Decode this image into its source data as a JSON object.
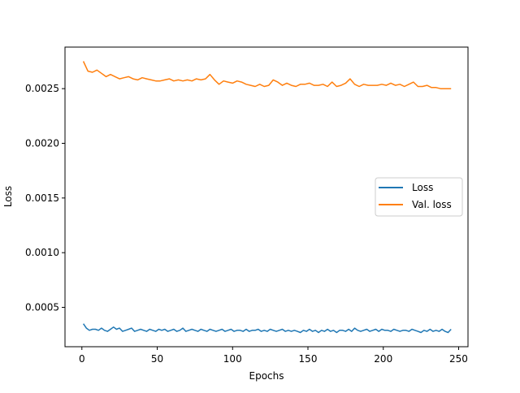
{
  "chart_data": {
    "type": "line",
    "title": "",
    "xlabel": "Epochs",
    "ylabel": "Loss",
    "xlim": [
      -11.2,
      256.2
    ],
    "ylim": [
      0.00014,
      0.00288
    ],
    "xticks": [
      0,
      50,
      100,
      150,
      200,
      250
    ],
    "xtick_labels": [
      "0",
      "50",
      "100",
      "150",
      "200",
      "250"
    ],
    "yticks": [
      0.0005,
      0.001,
      0.0015,
      0.002,
      0.0025
    ],
    "ytick_labels": [
      "0.0005",
      "0.0010",
      "0.0015",
      "0.0020",
      "0.0025"
    ],
    "grid": false,
    "legend_position": "center-right",
    "series": [
      {
        "name": "Loss",
        "color": "#1f77b4",
        "x": [
          1,
          3,
          5,
          7,
          9,
          11,
          13,
          15,
          17,
          19,
          21,
          23,
          25,
          27,
          29,
          31,
          33,
          35,
          37,
          39,
          41,
          43,
          45,
          47,
          49,
          51,
          53,
          55,
          57,
          59,
          61,
          63,
          65,
          67,
          69,
          71,
          73,
          75,
          77,
          79,
          81,
          83,
          85,
          87,
          89,
          91,
          93,
          95,
          97,
          99,
          101,
          103,
          105,
          107,
          109,
          111,
          113,
          115,
          117,
          119,
          121,
          123,
          125,
          127,
          129,
          131,
          133,
          135,
          137,
          139,
          141,
          143,
          145,
          147,
          149,
          151,
          153,
          155,
          157,
          159,
          161,
          163,
          165,
          167,
          169,
          171,
          173,
          175,
          177,
          179,
          181,
          183,
          185,
          187,
          189,
          191,
          193,
          195,
          197,
          199,
          201,
          203,
          205,
          207,
          209,
          211,
          213,
          215,
          217,
          219,
          221,
          223,
          225,
          227,
          229,
          231,
          233,
          235,
          237,
          239,
          241,
          243,
          245
        ],
        "y": [
          0.00035,
          0.00031,
          0.00029,
          0.0003,
          0.0003,
          0.00029,
          0.00031,
          0.00029,
          0.00028,
          0.0003,
          0.00032,
          0.0003,
          0.00031,
          0.00028,
          0.00029,
          0.0003,
          0.00031,
          0.00028,
          0.00029,
          0.0003,
          0.00029,
          0.00028,
          0.0003,
          0.00029,
          0.00028,
          0.0003,
          0.00029,
          0.0003,
          0.00028,
          0.00029,
          0.0003,
          0.00028,
          0.00029,
          0.00031,
          0.00028,
          0.00029,
          0.0003,
          0.00029,
          0.00028,
          0.0003,
          0.00029,
          0.00028,
          0.0003,
          0.00029,
          0.00028,
          0.00029,
          0.0003,
          0.00028,
          0.00029,
          0.0003,
          0.00028,
          0.00029,
          0.00029,
          0.00028,
          0.0003,
          0.00028,
          0.00029,
          0.00029,
          0.0003,
          0.00028,
          0.00029,
          0.00028,
          0.0003,
          0.00029,
          0.00028,
          0.00029,
          0.0003,
          0.00028,
          0.00029,
          0.00028,
          0.00029,
          0.00028,
          0.00027,
          0.00029,
          0.00028,
          0.0003,
          0.00028,
          0.00029,
          0.00027,
          0.00029,
          0.00028,
          0.0003,
          0.00028,
          0.00029,
          0.00027,
          0.00029,
          0.00029,
          0.00028,
          0.0003,
          0.00028,
          0.00031,
          0.00029,
          0.00028,
          0.00029,
          0.0003,
          0.00028,
          0.00029,
          0.0003,
          0.00028,
          0.0003,
          0.00029,
          0.00029,
          0.00028,
          0.0003,
          0.00029,
          0.00028,
          0.00029,
          0.00029,
          0.00028,
          0.0003,
          0.00029,
          0.00028,
          0.00027,
          0.00029,
          0.00028,
          0.0003,
          0.00028,
          0.00029,
          0.00028,
          0.0003,
          0.00028,
          0.00027,
          0.0003
        ]
      },
      {
        "name": "Val. loss",
        "color": "#ff7f0e",
        "x": [
          1,
          4,
          7,
          10,
          13,
          16,
          19,
          22,
          25,
          28,
          31,
          34,
          37,
          40,
          43,
          46,
          49,
          52,
          55,
          58,
          61,
          64,
          67,
          70,
          73,
          76,
          79,
          82,
          85,
          88,
          91,
          94,
          97,
          100,
          103,
          106,
          109,
          112,
          115,
          118,
          121,
          124,
          127,
          130,
          133,
          136,
          139,
          142,
          145,
          148,
          151,
          154,
          157,
          160,
          163,
          166,
          169,
          172,
          175,
          178,
          181,
          184,
          187,
          190,
          193,
          196,
          199,
          202,
          205,
          208,
          211,
          214,
          217,
          220,
          223,
          226,
          229,
          232,
          235,
          238,
          241,
          244,
          245
        ],
        "y": [
          0.00275,
          0.00266,
          0.00265,
          0.00267,
          0.00264,
          0.00261,
          0.00263,
          0.00261,
          0.00259,
          0.0026,
          0.00261,
          0.00259,
          0.00258,
          0.0026,
          0.00259,
          0.00258,
          0.00257,
          0.00257,
          0.00258,
          0.00259,
          0.00257,
          0.00258,
          0.00257,
          0.00258,
          0.00257,
          0.00259,
          0.00258,
          0.00259,
          0.00263,
          0.00258,
          0.00254,
          0.00257,
          0.00256,
          0.00255,
          0.00257,
          0.00256,
          0.00254,
          0.00253,
          0.00252,
          0.00254,
          0.00252,
          0.00253,
          0.00258,
          0.00256,
          0.00253,
          0.00255,
          0.00253,
          0.00252,
          0.00254,
          0.00254,
          0.00255,
          0.00253,
          0.00253,
          0.00254,
          0.00252,
          0.00256,
          0.00252,
          0.00253,
          0.00255,
          0.00259,
          0.00254,
          0.00252,
          0.00254,
          0.00253,
          0.00253,
          0.00253,
          0.00254,
          0.00253,
          0.00255,
          0.00253,
          0.00254,
          0.00252,
          0.00254,
          0.00256,
          0.00252,
          0.00252,
          0.00253,
          0.00251,
          0.00251,
          0.0025,
          0.0025,
          0.0025,
          0.0025
        ]
      }
    ]
  }
}
